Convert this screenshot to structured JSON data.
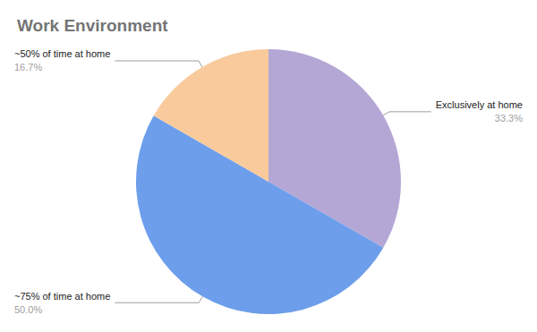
{
  "chart_data": {
    "type": "pie",
    "title": "Work Environment",
    "categories": [
      "Exclusively at home",
      "~75% of time at home",
      "~50% of time at home"
    ],
    "values": [
      33.3,
      50.0,
      16.7
    ],
    "value_labels": [
      "33.3%",
      "50.0%",
      "16.7%"
    ],
    "colors": [
      "#b4a7d6",
      "#6d9eeb",
      "#f9cb9c"
    ],
    "data_labels": true
  }
}
